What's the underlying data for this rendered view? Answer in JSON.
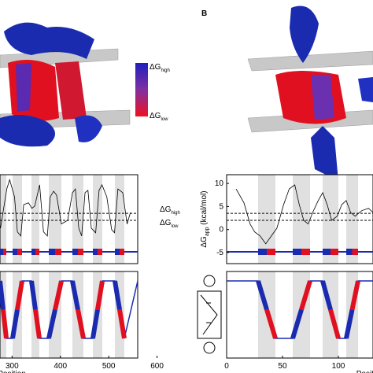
{
  "panel_label": "B",
  "colorbar": {
    "high": {
      "main": "ΔG",
      "sub": "high"
    },
    "low": {
      "main": "ΔG",
      "sub": "low"
    }
  },
  "left_plot": {
    "xlim": [
      275,
      560
    ],
    "xticks": [
      300,
      400,
      500,
      600
    ],
    "xlabel": "Position",
    "ylim": [
      -7.4,
      11.9
    ],
    "threshold_high": 3.5,
    "threshold_low": 2,
    "threshold_labels": {
      "high": {
        "main": "ΔG",
        "sub": "high"
      },
      "low": {
        "main": "ΔG",
        "sub": "low"
      }
    },
    "x": [
      276,
      289,
      295,
      305,
      311,
      318,
      324,
      334,
      341,
      347,
      357,
      365,
      373,
      379,
      386,
      392,
      402,
      415,
      425,
      431,
      438,
      444,
      451,
      457,
      464,
      473,
      480,
      486,
      496,
      506,
      512,
      519,
      529,
      538,
      545
    ],
    "values": [
      0.3,
      8.8,
      10.8,
      7.1,
      -0.5,
      -1.4,
      5.4,
      5.8,
      4.6,
      5.1,
      9.7,
      -0.5,
      -1.4,
      7.1,
      8.3,
      7.5,
      1.2,
      2.0,
      8.0,
      8.8,
      0.3,
      -1.4,
      8.0,
      8.5,
      0.3,
      -0.7,
      8.5,
      9.7,
      7.1,
      0,
      -0.7,
      8.8,
      8.0,
      1.2,
      3.7
    ]
  },
  "right_plot": {
    "xlim": [
      0,
      131
    ],
    "xticks": [
      0,
      50,
      100
    ],
    "xlabel": "Positi",
    "ylim": [
      -7.4,
      11.9
    ],
    "yticks": [
      10,
      5,
      0,
      -5
    ],
    "threshold_high": 3.5,
    "threshold_low": 2,
    "ylabel": {
      "main": "ΔG",
      "sub": "app",
      "rest": " (kcal/mol)"
    },
    "x": [
      8.5,
      15.5,
      21,
      25,
      30,
      35,
      40,
      45,
      51,
      56,
      61,
      65,
      69,
      73,
      77,
      82,
      86,
      90,
      94,
      99,
      103,
      107,
      111,
      115,
      121,
      127,
      131
    ],
    "values": [
      8.8,
      5.8,
      1.2,
      -0.5,
      -1.4,
      -3.1,
      -1.4,
      0.3,
      5.4,
      8.8,
      9.7,
      5.4,
      2,
      1.2,
      3.7,
      6.3,
      8,
      5.4,
      2,
      2.9,
      5.4,
      6.3,
      3.7,
      2.9,
      4.1,
      4.6,
      3.7
    ]
  }
}
